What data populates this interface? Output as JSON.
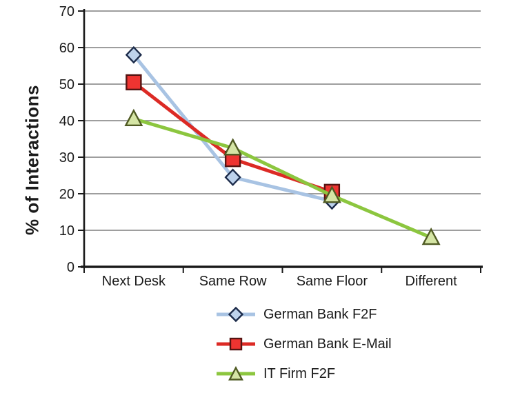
{
  "figure": {
    "background": "#ffffff"
  },
  "chart_data": {
    "type": "line",
    "title": "",
    "xlabel": "",
    "ylabel": "% of Interactions",
    "categories": [
      "Next Desk",
      "Same Row",
      "Same Floor",
      "Different"
    ],
    "series": [
      {
        "name": "German Bank F2F",
        "marker": "diamond",
        "line_color": "#a8c3e3",
        "marker_fill": "#bdd2ec",
        "marker_stroke": "#1c2b4a",
        "values": [
          58,
          24.5,
          18,
          null
        ]
      },
      {
        "name": "German Bank E-Mail",
        "marker": "square",
        "line_color": "#dc2a25",
        "marker_fill": "#ee3431",
        "marker_stroke": "#551412",
        "values": [
          50.5,
          29.5,
          20.5,
          null
        ]
      },
      {
        "name": "IT Firm F2F",
        "marker": "triangle",
        "line_color": "#8cc63f",
        "marker_fill": "#d5e5a5",
        "marker_stroke": "#4f5a23",
        "values": [
          40.5,
          32.5,
          19.5,
          8
        ]
      }
    ],
    "ylim": [
      0,
      70
    ],
    "ytick_step": 10,
    "yticks": [
      0,
      10,
      20,
      30,
      40,
      50,
      60,
      70
    ],
    "grid": "horizontal",
    "grid_color": "#7f7f7f",
    "axis_color": "#1a1a1a",
    "legend_position": "bottom-center"
  }
}
